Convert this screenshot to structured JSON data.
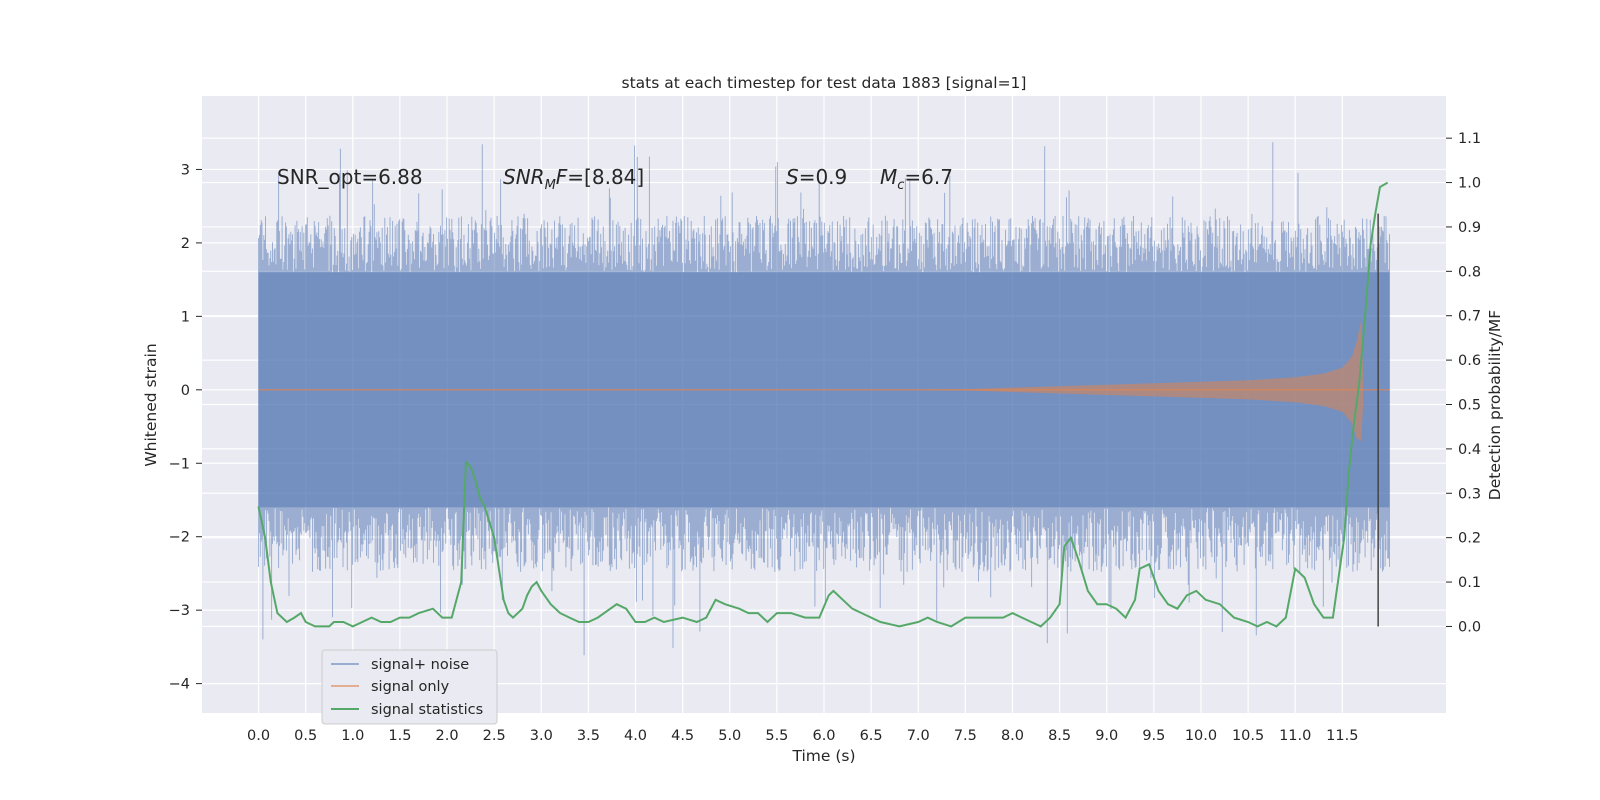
{
  "chart_data": {
    "type": "line",
    "title": "stats at each timestep for test data 1883 [signal=1]",
    "xlabel": "Time (s)",
    "ylabel_left": "Whitened strain",
    "ylabel_right": "Detection probability/MF",
    "xlim": [
      -0.6,
      12.6
    ],
    "ylim_left": [
      -4.4,
      4.0
    ],
    "ylim_right": [
      -0.195,
      1.195
    ],
    "x_ticks": [
      "0.0",
      "0.5",
      "1.0",
      "1.5",
      "2.0",
      "2.5",
      "3.0",
      "3.5",
      "4.0",
      "4.5",
      "5.0",
      "5.5",
      "6.0",
      "6.5",
      "7.0",
      "7.5",
      "8.0",
      "8.5",
      "9.0",
      "9.5",
      "10.0",
      "10.5",
      "11.0",
      "11.5"
    ],
    "y_left_ticks": [
      "−4",
      "−3",
      "−2",
      "−1",
      "0",
      "1",
      "2",
      "3"
    ],
    "y_right_ticks": [
      "0.0",
      "0.1",
      "0.2",
      "0.3",
      "0.4",
      "0.5",
      "0.6",
      "0.7",
      "0.8",
      "0.9",
      "1.0",
      "1.1"
    ],
    "grid": true,
    "annotations": {
      "snr_opt": "SNR_opt=6.88",
      "snr_mf_var": "SNR",
      "snr_mf_sub": "M",
      "snr_mf_var2": "F",
      "snr_mf_val": "=[8.84]",
      "s_var": "S",
      "s_val": "=0.9",
      "mc_var": "M",
      "mc_sub": "c",
      "mc_val": "=6.7"
    },
    "legend": {
      "placement": "lower-left",
      "entries": [
        "signal+ noise",
        "signal only",
        "signal statistics"
      ]
    },
    "series": [
      {
        "name": "signal+ noise",
        "color": "#4c72b0",
        "axis": "left",
        "envelope_x": [
          0.0,
          0.5,
          1.0,
          1.5,
          2.0,
          2.5,
          3.0,
          3.5,
          4.0,
          4.5,
          5.0,
          5.5,
          6.0,
          6.5,
          7.0,
          7.5,
          8.0,
          8.5,
          9.0,
          9.5,
          10.0,
          10.5,
          11.0,
          11.5,
          12.0
        ],
        "envelope_upper_typical": 2.3,
        "envelope_lower_typical": -2.4,
        "band_core": [
          -1.6,
          1.6
        ]
      },
      {
        "name": "signal only",
        "color": "#dd8452",
        "axis": "left",
        "x": [
          0.0,
          7.0,
          7.5,
          8.0,
          8.5,
          9.0,
          9.5,
          10.0,
          10.5,
          11.0,
          11.3,
          11.5,
          11.6,
          11.65,
          11.7,
          11.72
        ],
        "upper": [
          0.0,
          0.0,
          0.01,
          0.03,
          0.05,
          0.07,
          0.09,
          0.11,
          0.13,
          0.17,
          0.22,
          0.3,
          0.45,
          0.65,
          0.95,
          0.3
        ],
        "lower": [
          0.0,
          0.0,
          -0.01,
          -0.03,
          -0.05,
          -0.07,
          -0.09,
          -0.11,
          -0.13,
          -0.17,
          -0.22,
          -0.3,
          -0.45,
          -0.65,
          -0.7,
          -0.2
        ]
      },
      {
        "name": "signal statistics",
        "color": "#55a868",
        "axis": "right",
        "x": [
          0.0,
          0.07,
          0.13,
          0.2,
          0.3,
          0.38,
          0.45,
          0.5,
          0.6,
          0.7,
          0.75,
          0.8,
          0.9,
          1.0,
          1.1,
          1.2,
          1.3,
          1.4,
          1.5,
          1.6,
          1.7,
          1.85,
          1.95,
          2.05,
          2.15,
          2.2,
          2.25,
          2.3,
          2.35,
          2.4,
          2.5,
          2.6,
          2.65,
          2.7,
          2.8,
          2.85,
          2.9,
          2.95,
          3.0,
          3.1,
          3.2,
          3.3,
          3.4,
          3.5,
          3.6,
          3.8,
          3.9,
          4.0,
          4.1,
          4.2,
          4.3,
          4.5,
          4.65,
          4.75,
          4.85,
          4.95,
          5.1,
          5.2,
          5.3,
          5.4,
          5.5,
          5.65,
          5.8,
          5.95,
          6.05,
          6.1,
          6.2,
          6.3,
          6.4,
          6.6,
          6.8,
          7.0,
          7.1,
          7.2,
          7.35,
          7.5,
          7.7,
          7.9,
          8.0,
          8.1,
          8.2,
          8.3,
          8.4,
          8.5,
          8.55,
          8.62,
          8.7,
          8.8,
          8.9,
          9.0,
          9.1,
          9.2,
          9.3,
          9.35,
          9.45,
          9.55,
          9.65,
          9.75,
          9.85,
          9.95,
          10.05,
          10.2,
          10.35,
          10.5,
          10.6,
          10.7,
          10.8,
          10.9,
          11.0,
          11.1,
          11.2,
          11.3,
          11.4,
          11.5,
          11.6,
          11.65,
          11.7,
          11.8,
          11.9,
          12.0
        ],
        "values": [
          0.27,
          0.2,
          0.1,
          0.03,
          0.01,
          0.02,
          0.03,
          0.01,
          0.0,
          0.0,
          0.0,
          0.01,
          0.01,
          0.0,
          0.01,
          0.02,
          0.01,
          0.01,
          0.02,
          0.02,
          0.03,
          0.04,
          0.02,
          0.02,
          0.1,
          0.37,
          0.36,
          0.33,
          0.29,
          0.27,
          0.2,
          0.06,
          0.03,
          0.02,
          0.04,
          0.07,
          0.09,
          0.1,
          0.08,
          0.05,
          0.03,
          0.02,
          0.01,
          0.01,
          0.02,
          0.05,
          0.04,
          0.01,
          0.01,
          0.02,
          0.01,
          0.02,
          0.01,
          0.02,
          0.06,
          0.05,
          0.04,
          0.03,
          0.03,
          0.01,
          0.03,
          0.03,
          0.02,
          0.02,
          0.07,
          0.08,
          0.06,
          0.04,
          0.03,
          0.01,
          0.0,
          0.01,
          0.02,
          0.01,
          0.0,
          0.02,
          0.02,
          0.02,
          0.03,
          0.02,
          0.01,
          0.0,
          0.02,
          0.05,
          0.18,
          0.2,
          0.15,
          0.08,
          0.05,
          0.05,
          0.04,
          0.02,
          0.06,
          0.13,
          0.14,
          0.08,
          0.05,
          0.04,
          0.07,
          0.08,
          0.06,
          0.05,
          0.02,
          0.01,
          0.0,
          0.01,
          0.0,
          0.02,
          0.13,
          0.11,
          0.05,
          0.02,
          0.02,
          0.06,
          0.25,
          0.42,
          0.48,
          0.58,
          0.93,
          1.0
        ],
        "x_tail": [
          11.52,
          11.57,
          11.62,
          11.68,
          11.75,
          11.8,
          11.85,
          11.9,
          11.98
        ],
        "values_tail": [
          0.2,
          0.35,
          0.45,
          0.55,
          0.72,
          0.86,
          0.93,
          0.99,
          1.0
        ]
      }
    ],
    "vertical_marker_x": 11.88
  }
}
